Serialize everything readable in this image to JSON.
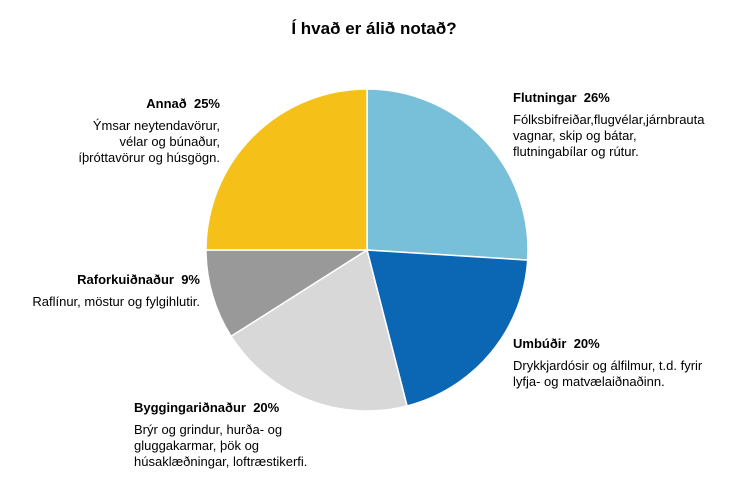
{
  "chart_data": {
    "type": "pie",
    "title": "Í hvað er álið notað?",
    "slices": [
      {
        "name": "Flutningar",
        "value": 26,
        "pct_label": "26%",
        "color": "#78bfd9",
        "description": "Fólksbifreiðar,flugvélar,járnbrauta\nvagnar, skip og bátar,\nflutningabílar og rútur."
      },
      {
        "name": "Umbúðir",
        "value": 20,
        "pct_label": "20%",
        "color": "#0b66b3",
        "description": "Drykkjardósir og álfilmur, t.d. fyrir\nlyfja- og matvælaiðnaðinn."
      },
      {
        "name": "Byggingariðnaður",
        "value": 20,
        "pct_label": "20%",
        "color": "#d8d8d8",
        "description": "Brýr og grindur, hurða- og\ngluggakarmar, þök og\nhúsaklæðningar, loftræstikerfi."
      },
      {
        "name": "Raforkuiðnaður",
        "value": 9,
        "pct_label": "9%",
        "color": "#999999",
        "description": "Raflínur, möstur og fylgihlutir."
      },
      {
        "name": "Annað",
        "value": 25,
        "pct_label": "25%",
        "color": "#f5c119",
        "description": "Ýmsar neytendavörur,\nvélar og búnaður,\níþróttavörur og húsgögn."
      }
    ]
  }
}
